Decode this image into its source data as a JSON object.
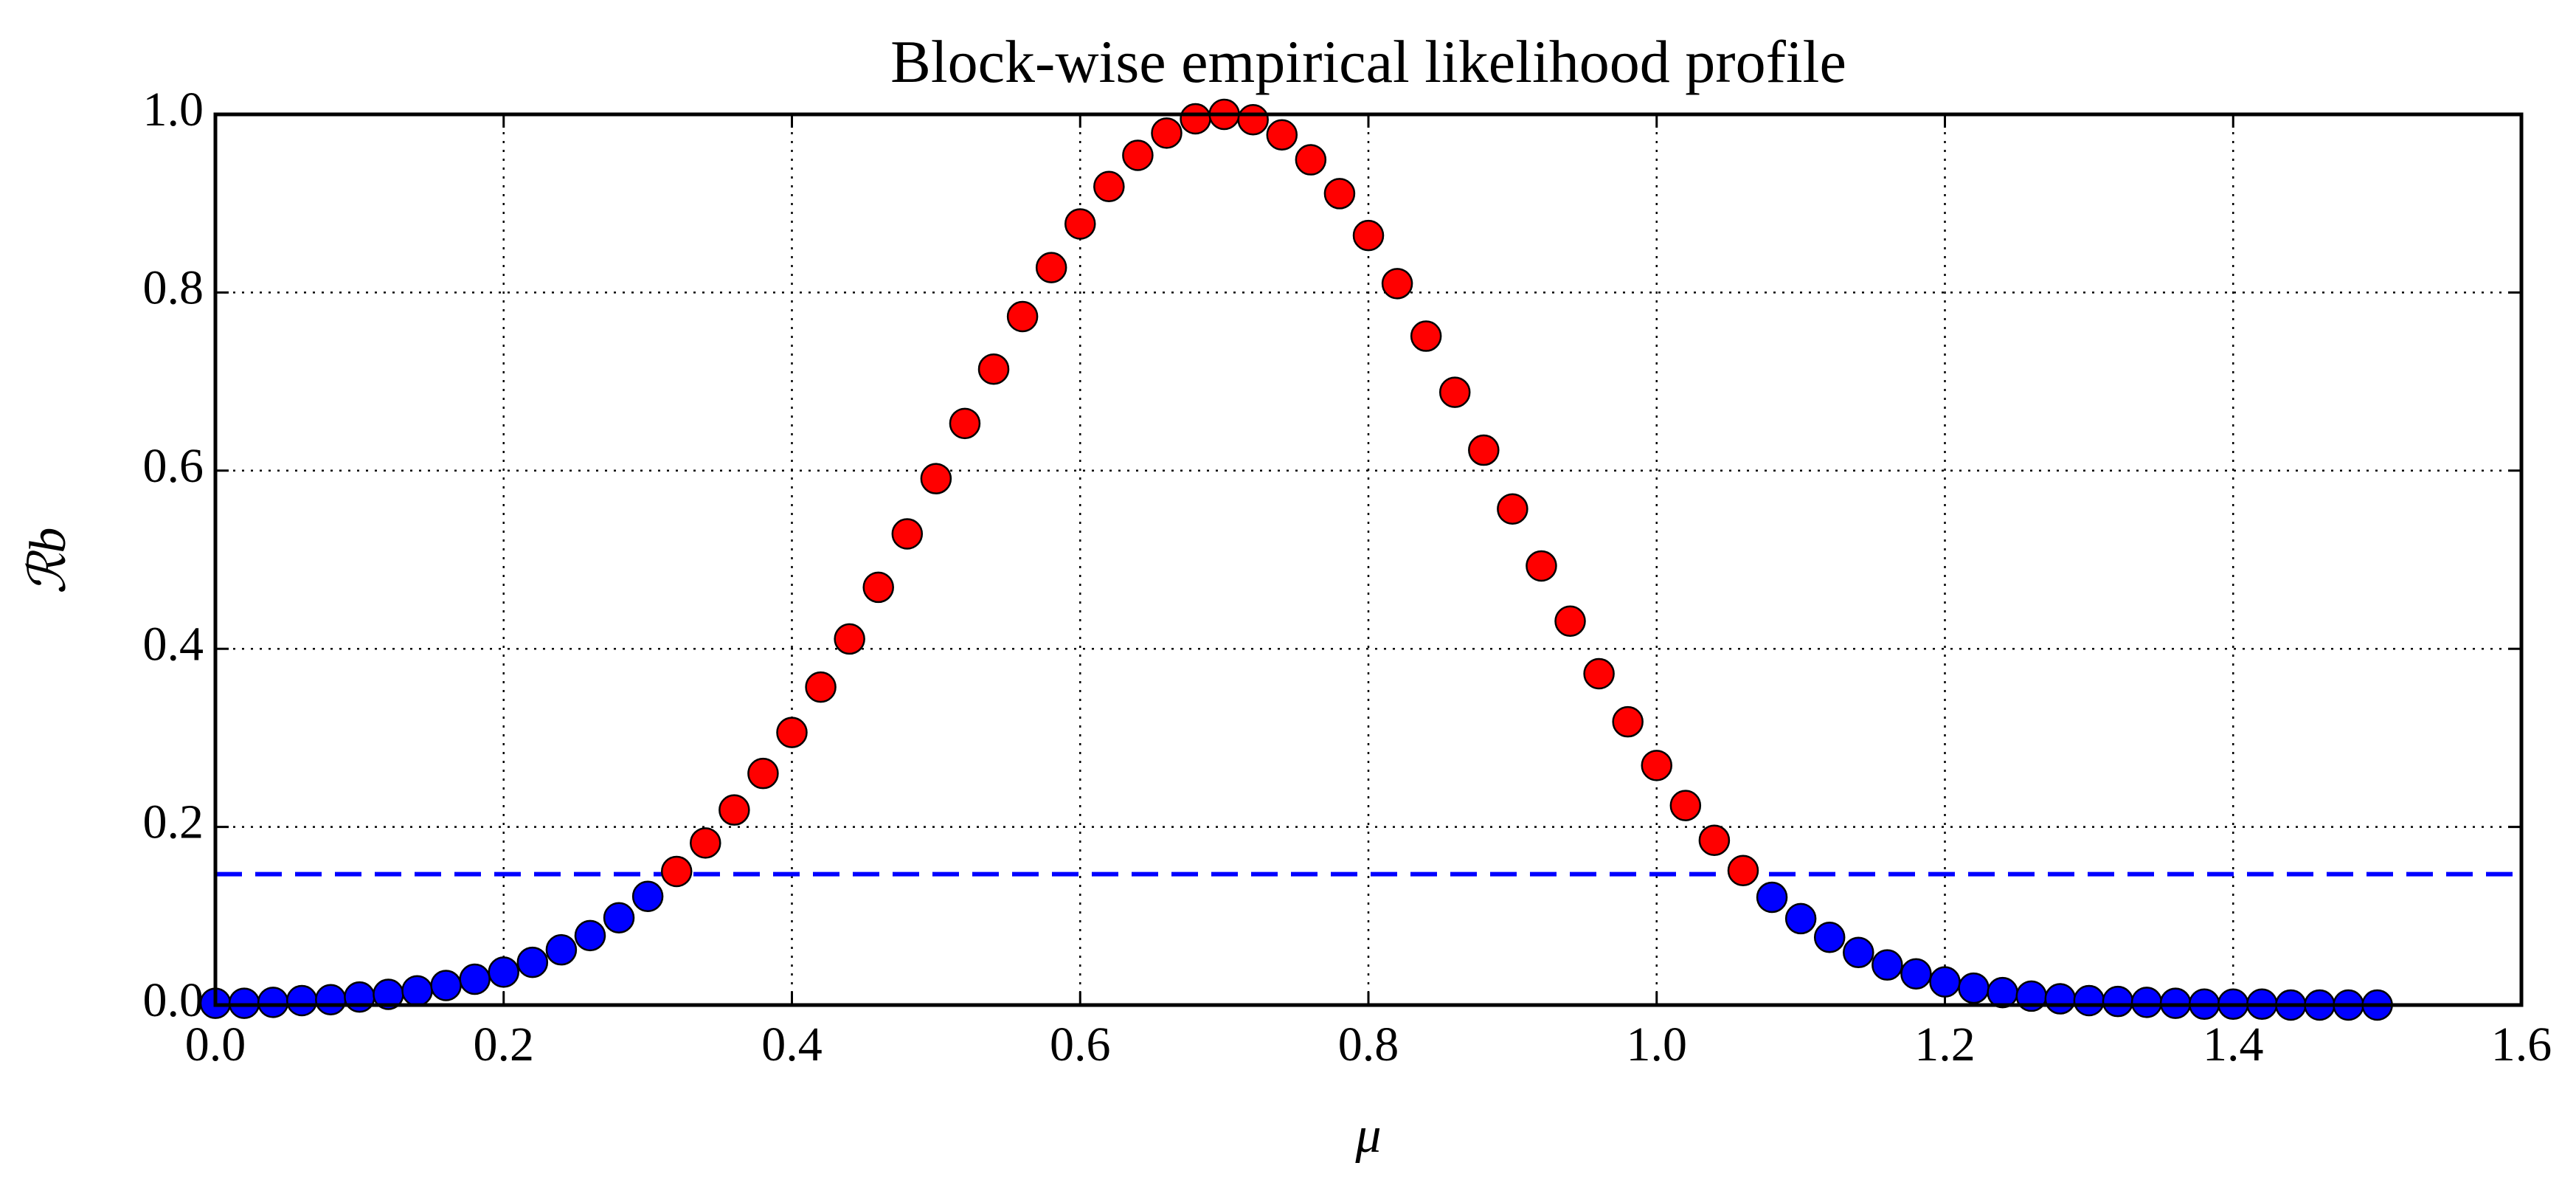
{
  "chart_data": {
    "type": "scatter",
    "title": "Block-wise empirical likelihood profile",
    "xlabel": "μ",
    "ylabel": "ℛb",
    "x": [
      0,
      0.02,
      0.04,
      0.06,
      0.08,
      0.1,
      0.12,
      0.14,
      0.16,
      0.18,
      0.2,
      0.22,
      0.24,
      0.26,
      0.28,
      0.3,
      0.32,
      0.34,
      0.36,
      0.38,
      0.4,
      0.42,
      0.44,
      0.46,
      0.48,
      0.5,
      0.52,
      0.54,
      0.56,
      0.58,
      0.6,
      0.62,
      0.64,
      0.66,
      0.68,
      0.7,
      0.72,
      0.74,
      0.76,
      0.78,
      0.8,
      0.82,
      0.84,
      0.86,
      0.88,
      0.9,
      0.92,
      0.94,
      0.96,
      0.98,
      1.0,
      1.02,
      1.04,
      1.06,
      1.08,
      1.1,
      1.12,
      1.14,
      1.16,
      1.18,
      1.2,
      1.22,
      1.24,
      1.26,
      1.28,
      1.3,
      1.32,
      1.34,
      1.36,
      1.38,
      1.4,
      1.42,
      1.44,
      1.46,
      1.48,
      1.5
    ],
    "values": [
      0.002,
      0.002,
      0.003,
      0.005,
      0.006,
      0.009,
      0.012,
      0.016,
      0.022,
      0.029,
      0.037,
      0.048,
      0.062,
      0.078,
      0.098,
      0.122,
      0.15,
      0.182,
      0.219,
      0.26,
      0.306,
      0.357,
      0.411,
      0.469,
      0.529,
      0.591,
      0.653,
      0.714,
      0.773,
      0.828,
      0.877,
      0.919,
      0.954,
      0.979,
      0.995,
      1.0,
      0.994,
      0.977,
      0.949,
      0.911,
      0.864,
      0.81,
      0.751,
      0.688,
      0.623,
      0.557,
      0.493,
      0.431,
      0.372,
      0.318,
      0.269,
      0.224,
      0.185,
      0.151,
      0.121,
      0.097,
      0.076,
      0.059,
      0.045,
      0.035,
      0.026,
      0.019,
      0.014,
      0.01,
      0.007,
      0.005,
      0.004,
      0.003,
      0.002,
      0.001,
      0.001,
      0.001,
      0,
      0,
      0,
      0
    ],
    "threshold": 0.147,
    "threshold_color": "#0000ff",
    "color_above": "#ff0000",
    "color_below": "#0000ff",
    "xlim": [
      0,
      1.6
    ],
    "ylim": [
      0,
      1
    ],
    "xticks": [
      {
        "value": 0,
        "label": "0.0"
      },
      0.2,
      0.4,
      0.6,
      0.8,
      {
        "value": 1,
        "label": "1.0"
      },
      1.2,
      1.4,
      1.6
    ],
    "yticks": [
      {
        "value": 0,
        "label": "0.0"
      },
      0.2,
      0.4,
      0.6,
      0.8,
      {
        "value": 1,
        "label": "1.0"
      }
    ],
    "grid": true
  }
}
